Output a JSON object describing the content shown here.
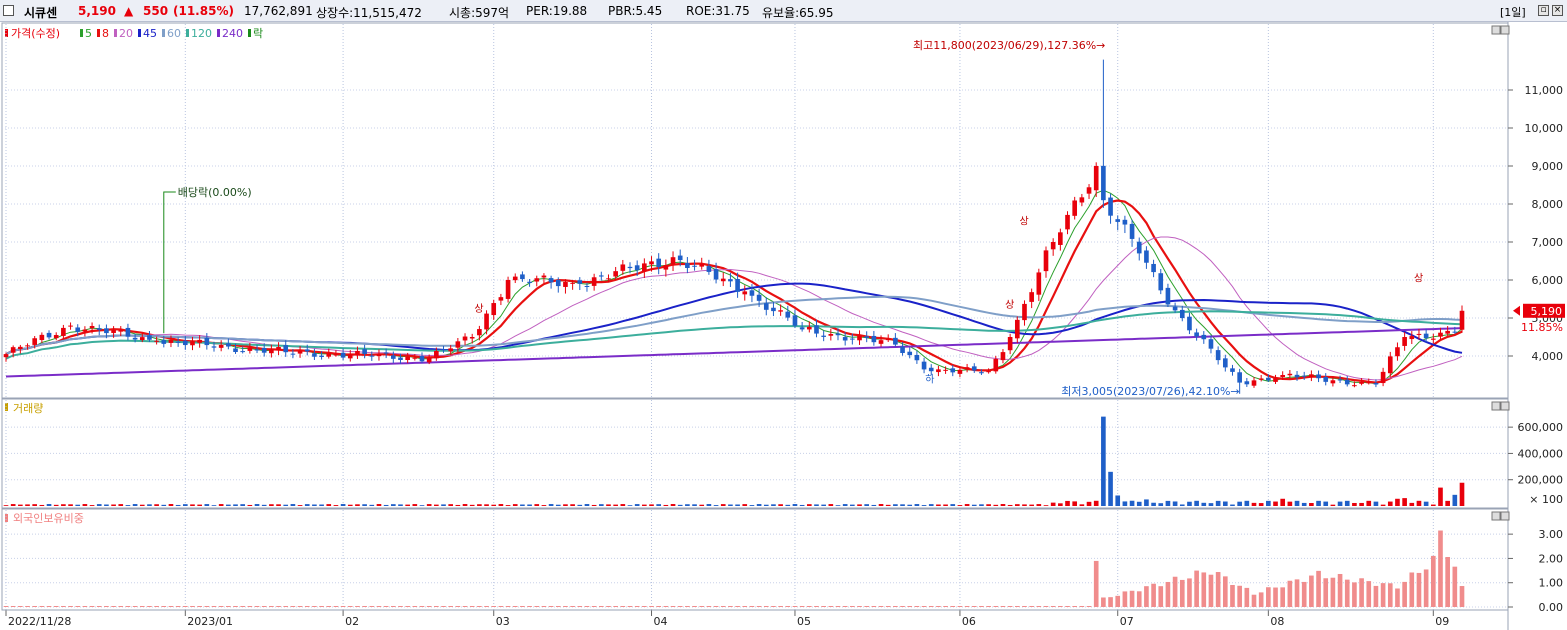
{
  "header": {
    "stock_name": "시큐센",
    "price": "5,190",
    "change_symbol": "▲",
    "change": "550",
    "change_pct": "(11.85%)",
    "volume": "17,762,891",
    "listed_shares": "상장수:11,515,472",
    "market_cap": "시총:597억",
    "per": "PER:19.88",
    "pbr": "PBR:5.45",
    "roe": "ROE:31.75",
    "float_ratio": "유보율:65.95",
    "period": "[1일]",
    "colors": {
      "up": "#e8000b",
      "down": "#1f5fc8"
    }
  },
  "legend": {
    "price_label": "가격(수정)",
    "ma": [
      {
        "label": "5",
        "color": "#2ca02c"
      },
      {
        "label": "8",
        "color": "#e81010"
      },
      {
        "label": "20",
        "color": "#c060c0"
      },
      {
        "label": "45",
        "color": "#1a22c8"
      },
      {
        "label": "60",
        "color": "#7f9fc8"
      },
      {
        "label": "120",
        "color": "#3cae9c"
      },
      {
        "label": "240",
        "color": "#7a2cc8"
      }
    ],
    "ex_label": "락"
  },
  "chart_data": [
    {
      "type": "candlestick",
      "title": "가격(수정)",
      "ylim": [
        3000,
        12000
      ],
      "y_ticks": [
        "4,000",
        "5,000",
        "6,000",
        "7,000",
        "8,000",
        "9,000",
        "10,000",
        "11,000"
      ],
      "x_ticks": [
        "2022/11/28",
        "2023/01",
        "02",
        "03",
        "04",
        "05",
        "06",
        "07",
        "08",
        "09"
      ],
      "current_price": "5,190",
      "current_change": "11.85%",
      "annotations": {
        "high": "최고11,800(2023/06/29),127.36%",
        "low": "최저3,005(2023/07/26),42.10%",
        "dividend": "배당락(0.00%)",
        "up_limit_tag": "상",
        "down_limit_tag": "하"
      },
      "price_keypoints": [
        [
          "2022-11-28",
          4050
        ],
        [
          "2022-12-09",
          4800
        ],
        [
          "2022-12-27",
          4400
        ],
        [
          "2023-01-20",
          4100
        ],
        [
          "2023-02-17",
          3950
        ],
        [
          "2023-02-27",
          4500
        ],
        [
          "2023-03-06",
          6000
        ],
        [
          "2023-03-20",
          5900
        ],
        [
          "2023-04-06",
          6600
        ],
        [
          "2023-04-20",
          5700
        ],
        [
          "2023-05-02",
          4700
        ],
        [
          "2023-05-19",
          4300
        ],
        [
          "2023-05-26",
          3600
        ],
        [
          "2023-06-07",
          3600
        ],
        [
          "2023-06-12",
          4500
        ],
        [
          "2023-06-20",
          7000
        ],
        [
          "2023-06-28",
          9000
        ],
        [
          "2023-06-29",
          8100
        ],
        [
          "2023-07-06",
          6700
        ],
        [
          "2023-07-13",
          5200
        ],
        [
          "2023-07-24",
          3700
        ],
        [
          "2023-07-26",
          3300
        ],
        [
          "2023-08-03",
          3500
        ],
        [
          "2023-08-22",
          3250
        ],
        [
          "2023-08-28",
          4500
        ],
        [
          "2023-09-06",
          4640
        ],
        [
          "2023-09-07",
          5190
        ]
      ],
      "high_value": 11800,
      "low_value": 3005
    },
    {
      "type": "bar",
      "title": "거래량",
      "ylim": [
        0,
        700000
      ],
      "y_ticks": [
        "200,000",
        "400,000",
        "600,000"
      ],
      "unit": "× 100",
      "spikes": [
        [
          "2023-06-29",
          680000
        ],
        [
          "2023-06-30",
          260000
        ],
        [
          "2023-07-03",
          80000
        ],
        [
          "2023-09-07",
          177000
        ]
      ]
    },
    {
      "type": "bar",
      "title": "외국인보유비중",
      "ylim": [
        0,
        3.5
      ],
      "y_ticks": [
        "0.00",
        "1.00",
        "2.00",
        "3.00"
      ],
      "values_keypoints": [
        [
          "2023-06-28",
          1.95
        ],
        [
          "2023-06-29",
          0.35
        ],
        [
          "2023-07-20",
          1.5
        ],
        [
          "2023-07-28",
          0.55
        ],
        [
          "2023-08-10",
          1.35
        ],
        [
          "2023-08-25",
          0.85
        ],
        [
          "2023-09-01",
          1.9
        ],
        [
          "2023-09-04",
          3.1
        ],
        [
          "2023-09-07",
          0.8
        ]
      ]
    }
  ]
}
